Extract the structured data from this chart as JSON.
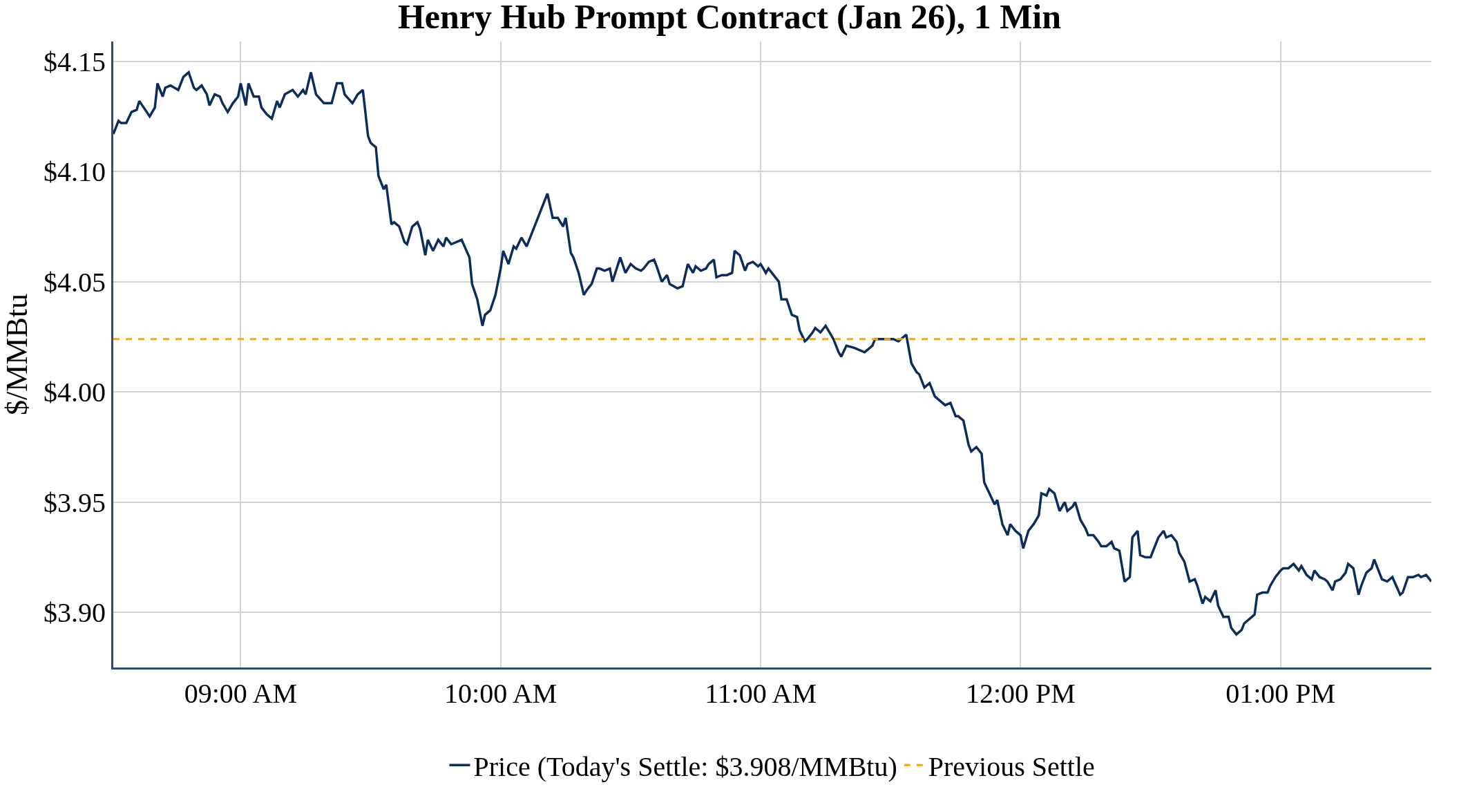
{
  "chart_data": {
    "type": "line",
    "title": "Henry Hub Prompt Contract (Jan 26), 1 Min",
    "ylabel": "$/MMBtu",
    "x": [
      8.51,
      8.53,
      8.54,
      8.56,
      8.58,
      8.6,
      8.61,
      8.65,
      8.67,
      8.68,
      8.7,
      8.71,
      8.73,
      8.76,
      8.78,
      8.8,
      8.82,
      8.83,
      8.85,
      8.87,
      8.88,
      8.9,
      8.92,
      8.93,
      8.95,
      8.97,
      8.99,
      9.0,
      9.02,
      9.03,
      9.05,
      9.07,
      9.08,
      9.1,
      9.12,
      9.14,
      9.15,
      9.17,
      9.2,
      9.22,
      9.24,
      9.25,
      9.27,
      9.29,
      9.32,
      9.35,
      9.37,
      9.39,
      9.4,
      9.43,
      9.45,
      9.47,
      9.49,
      9.5,
      9.52,
      9.53,
      9.55,
      9.56,
      9.58,
      9.59,
      9.61,
      9.63,
      9.64,
      9.66,
      9.68,
      9.69,
      9.71,
      9.72,
      9.74,
      9.76,
      9.78,
      9.79,
      9.81,
      9.85,
      9.88,
      9.89,
      9.91,
      9.93,
      9.94,
      9.96,
      9.98,
      10.0,
      10.01,
      10.03,
      10.05,
      10.06,
      10.08,
      10.1,
      10.18,
      10.2,
      10.22,
      10.24,
      10.25,
      10.27,
      10.28,
      10.3,
      10.32,
      10.33,
      10.35,
      10.37,
      10.38,
      10.4,
      10.42,
      10.43,
      10.46,
      10.48,
      10.5,
      10.52,
      10.54,
      10.55,
      10.57,
      10.59,
      10.6,
      10.62,
      10.64,
      10.65,
      10.68,
      10.7,
      10.72,
      10.74,
      10.75,
      10.77,
      10.79,
      10.8,
      10.82,
      10.83,
      10.85,
      10.87,
      10.89,
      10.9,
      10.92,
      10.94,
      10.95,
      10.97,
      10.99,
      11.0,
      11.02,
      11.03,
      11.05,
      11.07,
      11.08,
      11.1,
      11.12,
      11.14,
      11.15,
      11.17,
      11.18,
      11.2,
      11.21,
      11.23,
      11.25,
      11.26,
      11.28,
      11.3,
      11.31,
      11.33,
      11.36,
      11.4,
      11.41,
      11.43,
      11.44,
      11.48,
      11.51,
      11.53,
      11.55,
      11.56,
      11.58,
      11.6,
      11.61,
      11.63,
      11.65,
      11.67,
      11.68,
      11.71,
      11.73,
      11.75,
      11.76,
      11.78,
      11.8,
      11.81,
      11.83,
      11.85,
      11.86,
      11.88,
      11.9,
      11.91,
      11.93,
      11.95,
      11.96,
      11.98,
      12.0,
      12.01,
      12.03,
      12.05,
      12.07,
      12.08,
      12.1,
      12.11,
      12.13,
      12.15,
      12.17,
      12.18,
      12.2,
      12.21,
      12.23,
      12.25,
      12.26,
      12.28,
      12.3,
      12.31,
      12.33,
      12.35,
      12.36,
      12.38,
      12.4,
      12.42,
      12.43,
      12.45,
      12.46,
      12.48,
      12.5,
      12.51,
      12.53,
      12.55,
      12.56,
      12.58,
      12.6,
      12.61,
      12.63,
      12.65,
      12.67,
      12.68,
      12.7,
      12.71,
      12.73,
      12.75,
      12.76,
      12.78,
      12.8,
      12.81,
      12.83,
      12.85,
      12.86,
      12.88,
      12.9,
      12.91,
      12.93,
      12.95,
      12.96,
      12.98,
      13.0,
      13.01,
      13.03,
      13.05,
      13.07,
      13.08,
      13.1,
      13.12,
      13.13,
      13.15,
      13.17,
      13.18,
      13.2,
      13.21,
      13.23,
      13.25,
      13.26,
      13.28,
      13.3,
      13.31,
      13.33,
      13.35,
      13.36,
      13.38,
      13.39,
      13.41,
      13.43,
      13.46,
      13.47,
      13.49,
      13.51,
      13.53,
      13.54,
      13.56,
      13.58
    ],
    "series": [
      {
        "name": "Price (Today's Settle: $3.908/MMBtu)",
        "color": "#0b2d5b",
        "values": [
          4.117,
          4.123,
          4.122,
          4.122,
          4.127,
          4.128,
          4.132,
          4.125,
          4.129,
          4.14,
          4.134,
          4.138,
          4.139,
          4.137,
          4.143,
          4.145,
          4.138,
          4.137,
          4.139,
          4.135,
          4.13,
          4.135,
          4.134,
          4.131,
          4.127,
          4.131,
          4.134,
          4.14,
          4.13,
          4.14,
          4.134,
          4.134,
          4.129,
          4.126,
          4.124,
          4.132,
          4.129,
          4.135,
          4.137,
          4.134,
          4.137,
          4.135,
          4.145,
          4.135,
          4.131,
          4.131,
          4.14,
          4.14,
          4.135,
          4.131,
          4.135,
          4.137,
          4.116,
          4.113,
          4.111,
          4.098,
          4.092,
          4.094,
          4.076,
          4.077,
          4.075,
          4.068,
          4.067,
          4.075,
          4.077,
          4.074,
          4.062,
          4.069,
          4.064,
          4.069,
          4.066,
          4.07,
          4.067,
          4.069,
          4.061,
          4.049,
          4.042,
          4.03,
          4.035,
          4.037,
          4.044,
          4.056,
          4.064,
          4.058,
          4.066,
          4.065,
          4.07,
          4.066,
          4.09,
          4.079,
          4.079,
          4.075,
          4.079,
          4.063,
          4.061,
          4.054,
          4.044,
          4.046,
          4.049,
          4.056,
          4.056,
          4.055,
          4.056,
          4.05,
          4.061,
          4.054,
          4.058,
          4.056,
          4.055,
          4.056,
          4.059,
          4.06,
          4.057,
          4.05,
          4.053,
          4.049,
          4.047,
          4.048,
          4.058,
          4.054,
          4.057,
          4.055,
          4.056,
          4.058,
          4.06,
          4.052,
          4.053,
          4.053,
          4.054,
          4.064,
          4.062,
          4.055,
          4.058,
          4.059,
          4.057,
          4.058,
          4.054,
          4.056,
          4.053,
          4.05,
          4.042,
          4.042,
          4.035,
          4.034,
          4.028,
          4.023,
          4.024,
          4.027,
          4.029,
          4.027,
          4.03,
          4.028,
          4.024,
          4.018,
          4.016,
          4.021,
          4.02,
          4.018,
          4.019,
          4.021,
          4.024,
          4.024,
          4.024,
          4.023,
          4.025,
          4.026,
          4.013,
          4.009,
          4.008,
          4.002,
          4.004,
          3.998,
          3.997,
          3.994,
          3.995,
          3.989,
          3.989,
          3.987,
          3.976,
          3.973,
          3.975,
          3.972,
          3.959,
          3.954,
          3.949,
          3.951,
          3.94,
          3.935,
          3.94,
          3.937,
          3.935,
          3.929,
          3.937,
          3.94,
          3.944,
          3.954,
          3.953,
          3.956,
          3.954,
          3.946,
          3.95,
          3.946,
          3.948,
          3.95,
          3.942,
          3.938,
          3.935,
          3.935,
          3.932,
          3.93,
          3.93,
          3.932,
          3.929,
          3.928,
          3.914,
          3.916,
          3.934,
          3.937,
          3.926,
          3.925,
          3.925,
          3.928,
          3.934,
          3.937,
          3.934,
          3.935,
          3.932,
          3.927,
          3.923,
          3.914,
          3.915,
          3.912,
          3.904,
          3.907,
          3.905,
          3.91,
          3.903,
          3.898,
          3.898,
          3.893,
          3.89,
          3.892,
          3.895,
          3.897,
          3.899,
          3.908,
          3.909,
          3.909,
          3.912,
          3.916,
          3.919,
          3.92,
          3.92,
          3.922,
          3.919,
          3.921,
          3.917,
          3.915,
          3.919,
          3.916,
          3.915,
          3.914,
          3.91,
          3.914,
          3.915,
          3.918,
          3.922,
          3.92,
          3.908,
          3.912,
          3.918,
          3.92,
          3.924,
          3.918,
          3.915,
          3.914,
          3.916,
          3.908,
          3.909,
          3.916,
          3.916,
          3.917,
          3.916,
          3.917,
          3.914
        ]
      }
    ],
    "ref_lines": [
      {
        "axis": "y",
        "value": 4.024,
        "label": "Previous Settle",
        "color": "#ffa500",
        "line_style": "dashed"
      }
    ],
    "xlim": [
      8.51,
      13.58
    ],
    "xticks": [
      {
        "value": 9,
        "label": "09:00 AM"
      },
      {
        "value": 10,
        "label": "10:00 AM"
      },
      {
        "value": 11,
        "label": "11:00 AM"
      },
      {
        "value": 12,
        "label": "12:00 PM"
      },
      {
        "value": 13,
        "label": "01:00 PM"
      }
    ],
    "ylim": [
      3.875,
      4.159
    ],
    "yticks": [
      {
        "value": 3.9,
        "label": "$3.90"
      },
      {
        "value": 3.95,
        "label": "$3.95"
      },
      {
        "value": 4.0,
        "label": "$4.00"
      },
      {
        "value": 4.05,
        "label": "$4.05"
      },
      {
        "value": 4.1,
        "label": "$4.10"
      },
      {
        "value": 4.15,
        "label": "$4.15"
      }
    ],
    "grid": true,
    "legend": "bottom"
  }
}
